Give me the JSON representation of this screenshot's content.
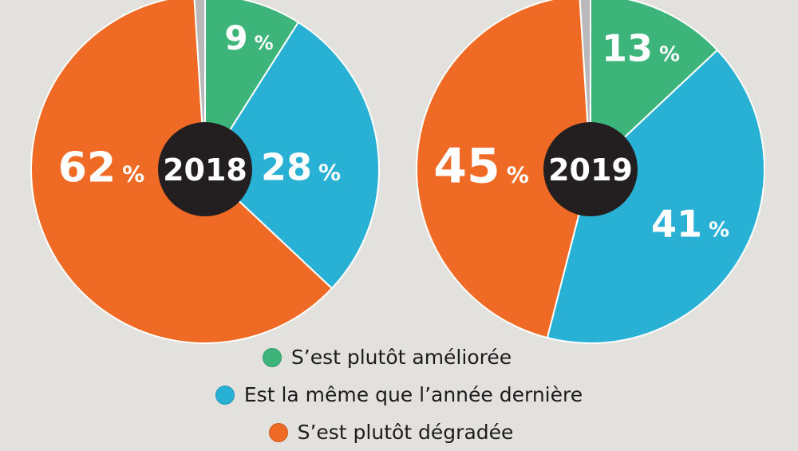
{
  "chart_data": [
    {
      "type": "pie",
      "center_label": "2018",
      "categories": [
        "S’est plutôt améliorée",
        "Est la même que l’année dernière",
        "S’est plutôt dégradée",
        ""
      ],
      "values": [
        9,
        28,
        62,
        1
      ],
      "labels": [
        "9",
        "28",
        "62",
        ""
      ],
      "unit": "%"
    },
    {
      "type": "pie",
      "center_label": "2019",
      "categories": [
        "S’est plutôt améliorée",
        "Est la même que l’année dernière",
        "S’est plutôt dégradée",
        ""
      ],
      "values": [
        13,
        41,
        45,
        1
      ],
      "labels": [
        "13",
        "41",
        "45",
        ""
      ],
      "unit": "%"
    }
  ],
  "legend": {
    "items": [
      {
        "label": "S’est plutôt améliorée",
        "color": "#3db57a"
      },
      {
        "label": "Est la même que l’année dernière",
        "color": "#29b0d5"
      },
      {
        "label": "S’est plutôt dégradée",
        "color": "#ef6a24"
      }
    ]
  },
  "colors": {
    "improved": "#3db57a",
    "same": "#29b0d5",
    "worse": "#ef6a24",
    "other": "#b9b9b9",
    "center": "#231f20",
    "background": "#e2e1dd"
  }
}
